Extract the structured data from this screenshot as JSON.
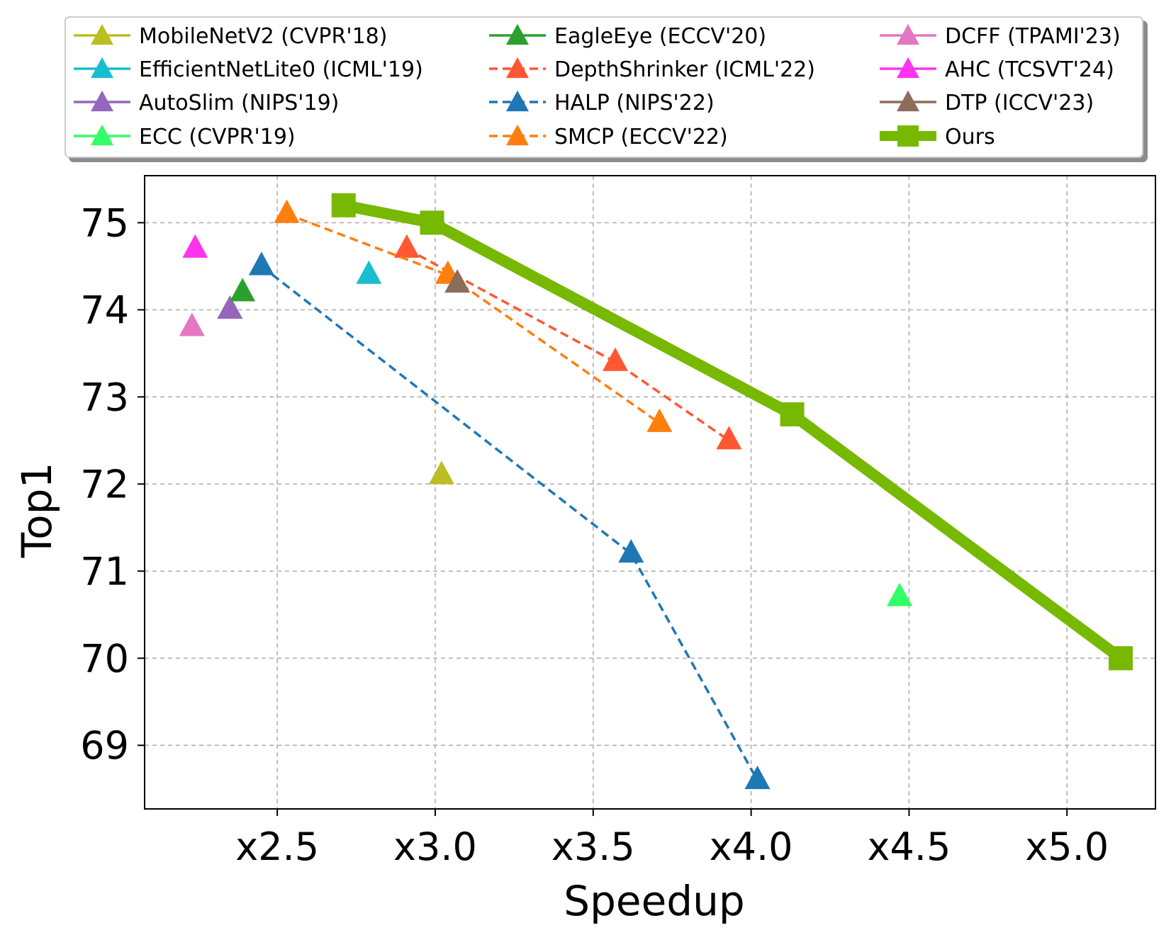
{
  "chart_data": {
    "type": "scatter",
    "title": "",
    "xlabel": "Speedup",
    "ylabel": "Top1",
    "xlim": [
      2.08,
      5.28
    ],
    "ylim": [
      68.27,
      75.54
    ],
    "grid": true,
    "legend_position": "top",
    "x_ticks": [
      2.5,
      3.0,
      3.5,
      4.0,
      4.5,
      5.0
    ],
    "x_tick_labels": [
      "x2.5",
      "x3.0",
      "x3.5",
      "x4.0",
      "x4.5",
      "x5.0"
    ],
    "y_ticks": [
      69,
      70,
      71,
      72,
      73,
      74,
      75
    ],
    "y_tick_labels": [
      "69",
      "70",
      "71",
      "72",
      "73",
      "74",
      "75"
    ],
    "series": [
      {
        "name": "MobileNetV2 (CVPR'18)",
        "color": "#bcbd22",
        "marker": "triangle",
        "line": "none",
        "x": [
          3.02
        ],
        "y": [
          72.1
        ]
      },
      {
        "name": "EfficientNetLite0 (ICML'19)",
        "color": "#17becf",
        "marker": "triangle",
        "line": "none",
        "x": [
          2.79
        ],
        "y": [
          74.4
        ]
      },
      {
        "name": "AutoSlim (NIPS'19)",
        "color": "#9467bd",
        "marker": "triangle",
        "line": "none",
        "x": [
          2.35
        ],
        "y": [
          74.0
        ]
      },
      {
        "name": "ECC (CVPR'19)",
        "color": "#33ff66",
        "marker": "triangle",
        "line": "none",
        "x": [
          4.47
        ],
        "y": [
          70.7
        ]
      },
      {
        "name": "EagleEye (ECCV'20)",
        "color": "#2ca02c",
        "marker": "triangle",
        "line": "none",
        "x": [
          2.39
        ],
        "y": [
          74.2
        ]
      },
      {
        "name": "DepthShrinker (ICML'22)",
        "color": "#ff5733",
        "marker": "triangle",
        "line": "dashed",
        "x": [
          2.91,
          3.57,
          3.93
        ],
        "y": [
          74.7,
          73.4,
          72.5
        ]
      },
      {
        "name": "HALP (NIPS'22)",
        "color": "#1f77b4",
        "marker": "triangle",
        "line": "dashed",
        "x": [
          2.45,
          3.62,
          4.02
        ],
        "y": [
          74.5,
          71.2,
          68.6
        ]
      },
      {
        "name": "SMCP (ECCV'22)",
        "color": "#ff7f0e",
        "marker": "triangle",
        "line": "dashed",
        "x": [
          2.53,
          3.04,
          3.71
        ],
        "y": [
          75.1,
          74.4,
          72.7
        ]
      },
      {
        "name": "DCFF (TPAMI'23)",
        "color": "#e377c2",
        "marker": "triangle",
        "line": "none",
        "x": [
          2.23
        ],
        "y": [
          73.8
        ]
      },
      {
        "name": "AHC (TCSVT'24)",
        "color": "#ff33ee",
        "marker": "triangle",
        "line": "none",
        "x": [
          2.24
        ],
        "y": [
          74.7
        ]
      },
      {
        "name": "DTP (ICCV'23)",
        "color": "#8c6d5a",
        "marker": "triangle",
        "line": "none",
        "x": [
          3.07
        ],
        "y": [
          74.3
        ]
      },
      {
        "name": "Ours",
        "color": "#77b800",
        "marker": "square",
        "line": "solid-thick",
        "x": [
          2.71,
          2.99,
          4.13,
          5.17
        ],
        "y": [
          75.2,
          75.0,
          72.8,
          70.0
        ]
      }
    ]
  }
}
